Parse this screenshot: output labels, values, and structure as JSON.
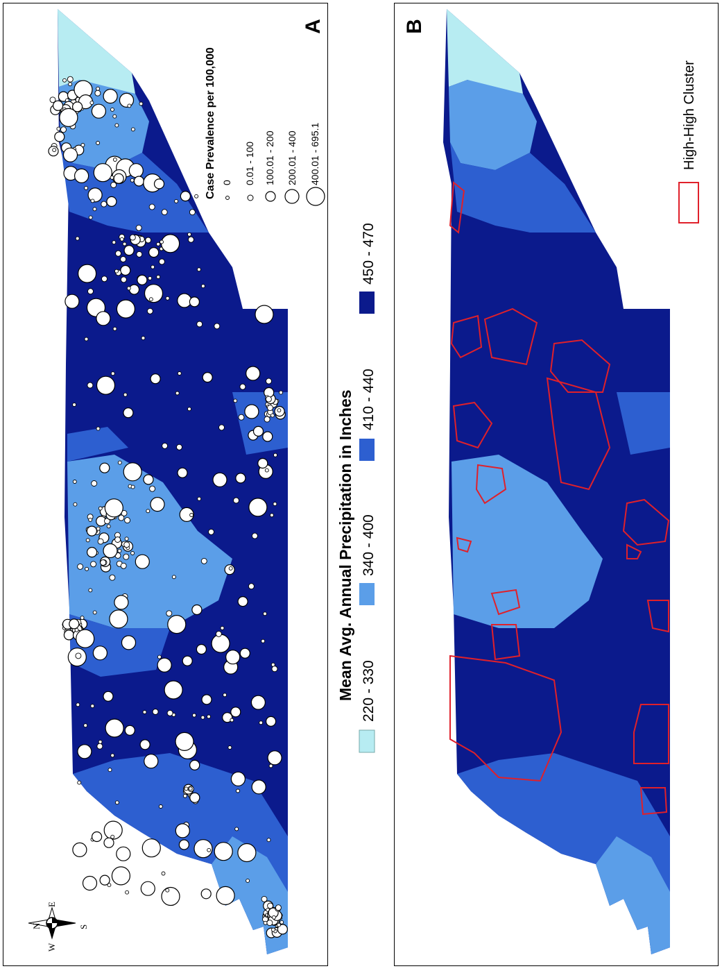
{
  "panels": [
    {
      "label": "A",
      "legend_title": "Case Prevalence per 100,000"
    },
    {
      "label": "B",
      "cluster_label": "High-High Cluster"
    }
  ],
  "size_legend": {
    "classes": [
      "0",
      "0.01 - 100",
      "100.01 - 200",
      "200.01 - 400",
      "400.01 - 695.1"
    ]
  },
  "precip_legend": {
    "title": "Mean Avg. Annual Precipitation in Inches",
    "classes": [
      {
        "label": "220 - 330",
        "color": "#b7ecf2"
      },
      {
        "label": "340 - 400",
        "color": "#5b9ee8"
      },
      {
        "label": "410 - 440",
        "color": "#2d5fd0"
      },
      {
        "label": "450 - 470",
        "color": "#0b1a8c"
      }
    ]
  },
  "compass": {
    "n": "N",
    "e": "E",
    "s": "S",
    "w": "W"
  },
  "colors": {
    "cluster_outline": "#e0202a",
    "circle_fill": "#ffffff",
    "circle_stroke": "#000000"
  }
}
